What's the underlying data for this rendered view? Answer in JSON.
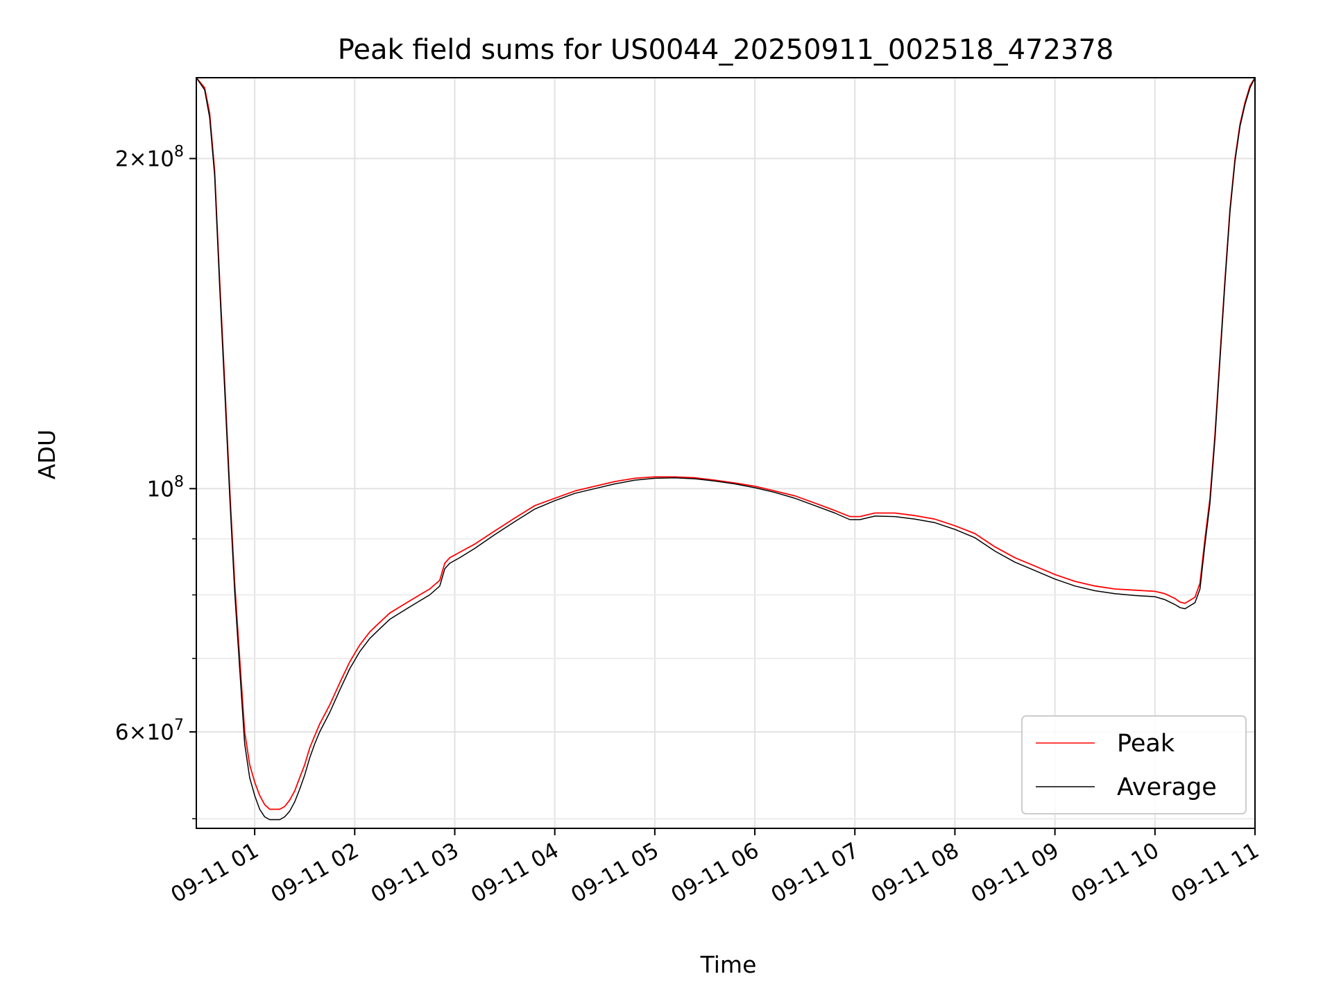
{
  "chart_data": {
    "type": "line",
    "title": "Peak field sums for US0044_20250911_002518_472378",
    "xlabel": "Time",
    "ylabel": "ADU",
    "x_scale": "time",
    "y_scale": "log",
    "xlim": [
      "2025-09-11 00:25",
      "2025-09-11 11:00"
    ],
    "ylim": [
      49000000,
      237000000
    ],
    "grid": true,
    "legend": "lower-right",
    "x_ticks": [
      {
        "t": "2025-09-11 01:00",
        "label": "09-11 01"
      },
      {
        "t": "2025-09-11 02:00",
        "label": "09-11 02"
      },
      {
        "t": "2025-09-11 03:00",
        "label": "09-11 03"
      },
      {
        "t": "2025-09-11 04:00",
        "label": "09-11 04"
      },
      {
        "t": "2025-09-11 05:00",
        "label": "09-11 05"
      },
      {
        "t": "2025-09-11 06:00",
        "label": "09-11 06"
      },
      {
        "t": "2025-09-11 07:00",
        "label": "09-11 07"
      },
      {
        "t": "2025-09-11 08:00",
        "label": "09-11 08"
      },
      {
        "t": "2025-09-11 09:00",
        "label": "09-11 09"
      },
      {
        "t": "2025-09-11 10:00",
        "label": "09-11 10"
      },
      {
        "t": "2025-09-11 11:00",
        "label": "09-11 11"
      }
    ],
    "y_major_ticks": [
      {
        "value": 60000000,
        "mant": "6",
        "exp": "7"
      },
      {
        "value": 100000000,
        "mant": "",
        "exp": "8"
      },
      {
        "value": 200000000,
        "mant": "2",
        "exp": "8"
      }
    ],
    "y_minor_ticks": [
      50000000,
      70000000,
      80000000,
      90000000
    ],
    "series": [
      {
        "name": "Peak",
        "color": "#ff0000",
        "x": [
          "2025-09-11 00:25",
          "2025-09-11 00:30",
          "2025-09-11 00:33",
          "2025-09-11 00:36",
          "2025-09-11 00:39",
          "2025-09-11 00:42",
          "2025-09-11 00:45",
          "2025-09-11 00:48",
          "2025-09-11 00:51",
          "2025-09-11 00:54",
          "2025-09-11 00:57",
          "2025-09-11 01:00",
          "2025-09-11 01:03",
          "2025-09-11 01:06",
          "2025-09-11 01:09",
          "2025-09-11 01:12",
          "2025-09-11 01:15",
          "2025-09-11 01:18",
          "2025-09-11 01:21",
          "2025-09-11 01:24",
          "2025-09-11 01:27",
          "2025-09-11 01:30",
          "2025-09-11 01:33",
          "2025-09-11 01:36",
          "2025-09-11 01:39",
          "2025-09-11 01:45",
          "2025-09-11 01:51",
          "2025-09-11 01:57",
          "2025-09-11 02:03",
          "2025-09-11 02:09",
          "2025-09-11 02:15",
          "2025-09-11 02:21",
          "2025-09-11 02:27",
          "2025-09-11 02:33",
          "2025-09-11 02:39",
          "2025-09-11 02:45",
          "2025-09-11 02:51",
          "2025-09-11 02:54",
          "2025-09-11 02:57",
          "2025-09-11 03:03",
          "2025-09-11 03:12",
          "2025-09-11 03:24",
          "2025-09-11 03:36",
          "2025-09-11 03:48",
          "2025-09-11 04:00",
          "2025-09-11 04:12",
          "2025-09-11 04:24",
          "2025-09-11 04:36",
          "2025-09-11 04:48",
          "2025-09-11 05:00",
          "2025-09-11 05:12",
          "2025-09-11 05:24",
          "2025-09-11 05:36",
          "2025-09-11 05:48",
          "2025-09-11 06:00",
          "2025-09-11 06:12",
          "2025-09-11 06:24",
          "2025-09-11 06:36",
          "2025-09-11 06:48",
          "2025-09-11 06:57",
          "2025-09-11 07:03",
          "2025-09-11 07:12",
          "2025-09-11 07:24",
          "2025-09-11 07:36",
          "2025-09-11 07:48",
          "2025-09-11 08:00",
          "2025-09-11 08:12",
          "2025-09-11 08:24",
          "2025-09-11 08:36",
          "2025-09-11 08:48",
          "2025-09-11 09:00",
          "2025-09-11 09:12",
          "2025-09-11 09:24",
          "2025-09-11 09:36",
          "2025-09-11 09:48",
          "2025-09-11 10:00",
          "2025-09-11 10:06",
          "2025-09-11 10:12",
          "2025-09-11 10:15",
          "2025-09-11 10:18",
          "2025-09-11 10:24",
          "2025-09-11 10:27",
          "2025-09-11 10:30",
          "2025-09-11 10:33",
          "2025-09-11 10:36",
          "2025-09-11 10:39",
          "2025-09-11 10:42",
          "2025-09-11 10:45",
          "2025-09-11 10:48",
          "2025-09-11 10:51",
          "2025-09-11 10:54",
          "2025-09-11 10:57",
          "2025-09-11 11:00"
        ],
        "values": [
          237000000,
          232000000,
          220000000,
          195000000,
          155000000,
          125000000,
          100000000,
          82000000,
          70000000,
          60000000,
          56000000,
          54000000,
          52500000,
          51500000,
          51000000,
          51000000,
          51000000,
          51300000,
          52000000,
          53000000,
          54500000,
          56000000,
          58000000,
          59500000,
          61000000,
          63500000,
          66500000,
          69500000,
          72000000,
          74000000,
          75500000,
          77000000,
          78000000,
          79000000,
          80000000,
          81000000,
          82500000,
          85500000,
          86500000,
          87500000,
          89000000,
          91500000,
          94000000,
          96500000,
          98000000,
          99500000,
          100500000,
          101500000,
          102200000,
          102500000,
          102500000,
          102300000,
          101800000,
          101200000,
          100500000,
          99500000,
          98500000,
          97000000,
          95500000,
          94300000,
          94300000,
          95000000,
          95000000,
          94500000,
          93800000,
          92500000,
          91000000,
          88500000,
          86500000,
          85000000,
          83500000,
          82300000,
          81500000,
          81000000,
          80800000,
          80600000,
          80200000,
          79400000,
          78800000,
          78600000,
          79600000,
          82000000,
          90000000,
          98000000,
          112000000,
          132000000,
          155000000,
          180000000,
          200000000,
          215000000,
          225000000,
          233000000,
          237000000
        ]
      },
      {
        "name": "Average",
        "color": "#000000",
        "x": [
          "2025-09-11 00:25",
          "2025-09-11 00:30",
          "2025-09-11 00:33",
          "2025-09-11 00:36",
          "2025-09-11 00:39",
          "2025-09-11 00:42",
          "2025-09-11 00:45",
          "2025-09-11 00:48",
          "2025-09-11 00:51",
          "2025-09-11 00:54",
          "2025-09-11 00:57",
          "2025-09-11 01:00",
          "2025-09-11 01:03",
          "2025-09-11 01:06",
          "2025-09-11 01:09",
          "2025-09-11 01:12",
          "2025-09-11 01:15",
          "2025-09-11 01:18",
          "2025-09-11 01:21",
          "2025-09-11 01:24",
          "2025-09-11 01:27",
          "2025-09-11 01:30",
          "2025-09-11 01:33",
          "2025-09-11 01:36",
          "2025-09-11 01:39",
          "2025-09-11 01:45",
          "2025-09-11 01:51",
          "2025-09-11 01:57",
          "2025-09-11 02:03",
          "2025-09-11 02:09",
          "2025-09-11 02:15",
          "2025-09-11 02:21",
          "2025-09-11 02:27",
          "2025-09-11 02:33",
          "2025-09-11 02:39",
          "2025-09-11 02:45",
          "2025-09-11 02:51",
          "2025-09-11 02:54",
          "2025-09-11 02:57",
          "2025-09-11 03:03",
          "2025-09-11 03:12",
          "2025-09-11 03:24",
          "2025-09-11 03:36",
          "2025-09-11 03:48",
          "2025-09-11 04:00",
          "2025-09-11 04:12",
          "2025-09-11 04:24",
          "2025-09-11 04:36",
          "2025-09-11 04:48",
          "2025-09-11 05:00",
          "2025-09-11 05:12",
          "2025-09-11 05:24",
          "2025-09-11 05:36",
          "2025-09-11 05:48",
          "2025-09-11 06:00",
          "2025-09-11 06:12",
          "2025-09-11 06:24",
          "2025-09-11 06:36",
          "2025-09-11 06:48",
          "2025-09-11 06:57",
          "2025-09-11 07:03",
          "2025-09-11 07:12",
          "2025-09-11 07:24",
          "2025-09-11 07:36",
          "2025-09-11 07:48",
          "2025-09-11 08:00",
          "2025-09-11 08:12",
          "2025-09-11 08:24",
          "2025-09-11 08:36",
          "2025-09-11 08:48",
          "2025-09-11 09:00",
          "2025-09-11 09:12",
          "2025-09-11 09:24",
          "2025-09-11 09:36",
          "2025-09-11 09:48",
          "2025-09-11 10:00",
          "2025-09-11 10:06",
          "2025-09-11 10:12",
          "2025-09-11 10:15",
          "2025-09-11 10:18",
          "2025-09-11 10:24",
          "2025-09-11 10:27",
          "2025-09-11 10:30",
          "2025-09-11 10:33",
          "2025-09-11 10:36",
          "2025-09-11 10:39",
          "2025-09-11 10:42",
          "2025-09-11 10:45",
          "2025-09-11 10:48",
          "2025-09-11 10:51",
          "2025-09-11 10:54",
          "2025-09-11 10:57",
          "2025-09-11 11:00"
        ],
        "values": [
          237000000,
          231000000,
          218000000,
          193000000,
          153000000,
          123000000,
          98500000,
          80500000,
          68500000,
          58500000,
          54500000,
          52500000,
          51000000,
          50200000,
          49900000,
          49900000,
          49900000,
          50200000,
          50800000,
          51800000,
          53200000,
          54800000,
          56800000,
          58500000,
          60000000,
          62500000,
          65500000,
          68500000,
          71000000,
          73000000,
          74500000,
          76000000,
          77000000,
          78000000,
          79000000,
          80000000,
          81500000,
          84500000,
          85500000,
          86500000,
          88200000,
          90800000,
          93300000,
          95800000,
          97500000,
          99000000,
          100000000,
          101000000,
          101800000,
          102200000,
          102300000,
          102100000,
          101600000,
          101000000,
          100200000,
          99200000,
          98000000,
          96500000,
          95000000,
          93700000,
          93700000,
          94400000,
          94300000,
          93800000,
          93100000,
          91800000,
          90200000,
          87700000,
          85700000,
          84200000,
          82700000,
          81500000,
          80700000,
          80200000,
          79900000,
          79700000,
          79200000,
          78400000,
          77900000,
          77700000,
          78700000,
          81000000,
          89000000,
          97000000,
          111000000,
          131000000,
          154000000,
          179000000,
          199000000,
          214000000,
          224000000,
          232000000,
          237000000
        ]
      }
    ]
  }
}
